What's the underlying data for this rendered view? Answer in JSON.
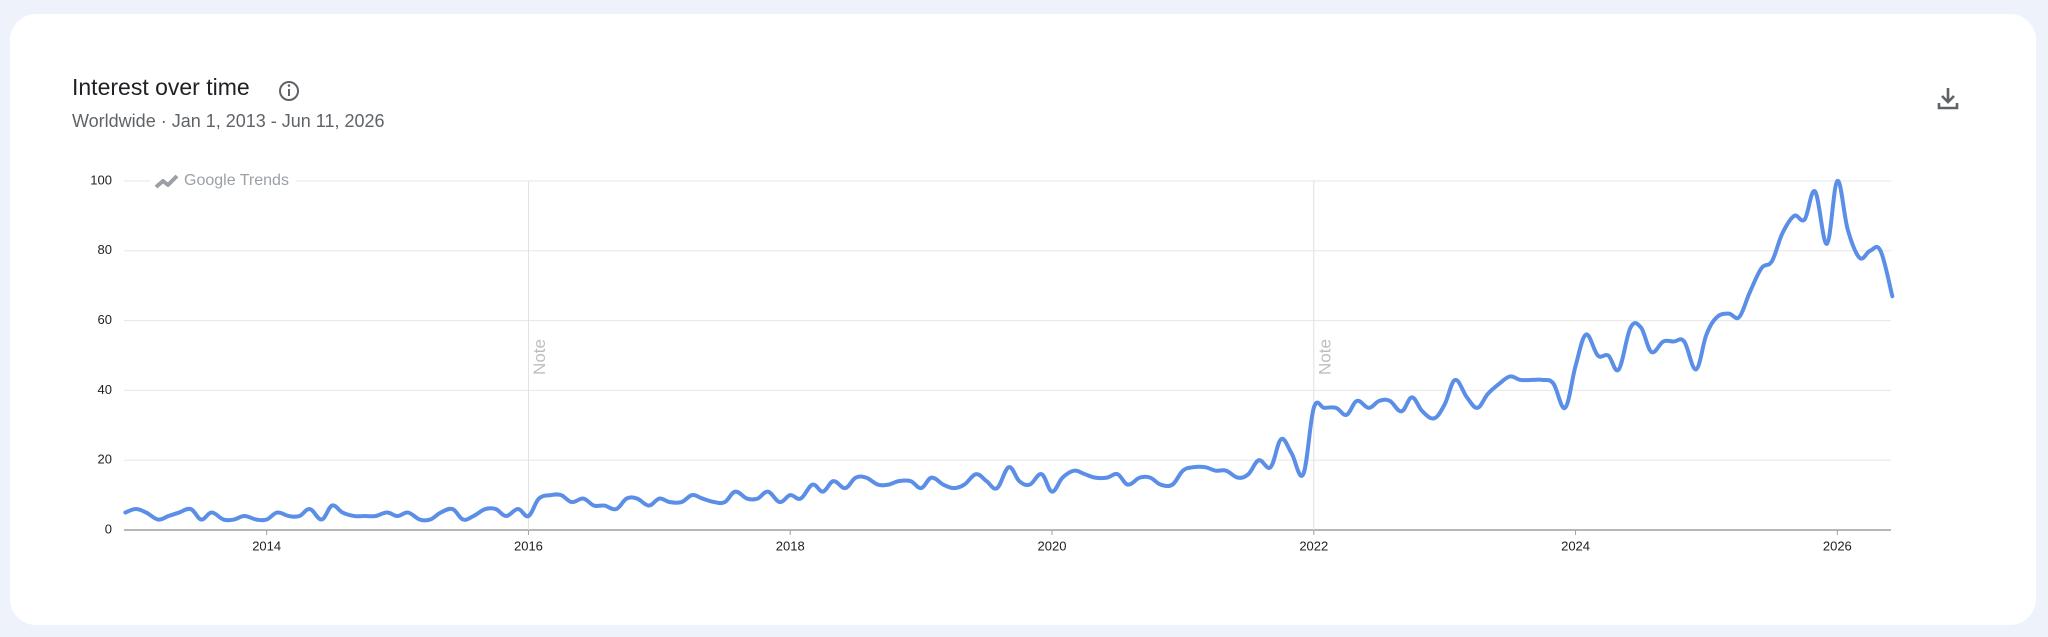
{
  "chart_data": {
    "type": "line",
    "title": "Interest over time",
    "subtitle": "Worldwide · Jan 1, 2013 - Jun 11, 2026",
    "watermark": "Google Trends",
    "x": [
      2012.92,
      2013,
      2013.08,
      2013.17,
      2013.25,
      2013.33,
      2013.42,
      2013.5,
      2013.58,
      2013.67,
      2013.75,
      2013.83,
      2013.92,
      2014,
      2014.08,
      2014.17,
      2014.25,
      2014.33,
      2014.42,
      2014.5,
      2014.58,
      2014.67,
      2014.75,
      2014.83,
      2014.92,
      2015,
      2015.08,
      2015.17,
      2015.25,
      2015.33,
      2015.42,
      2015.5,
      2015.58,
      2015.67,
      2015.75,
      2015.83,
      2015.92,
      2016,
      2016.08,
      2016.17,
      2016.25,
      2016.33,
      2016.42,
      2016.5,
      2016.58,
      2016.67,
      2016.75,
      2016.83,
      2016.92,
      2017,
      2017.08,
      2017.17,
      2017.25,
      2017.33,
      2017.42,
      2017.5,
      2017.58,
      2017.67,
      2017.75,
      2017.83,
      2017.92,
      2018,
      2018.08,
      2018.17,
      2018.25,
      2018.33,
      2018.42,
      2018.5,
      2018.58,
      2018.67,
      2018.75,
      2018.83,
      2018.92,
      2019,
      2019.08,
      2019.17,
      2019.25,
      2019.33,
      2019.42,
      2019.5,
      2019.58,
      2019.67,
      2019.75,
      2019.83,
      2019.92,
      2020,
      2020.08,
      2020.17,
      2020.25,
      2020.33,
      2020.42,
      2020.5,
      2020.58,
      2020.67,
      2020.75,
      2020.83,
      2020.92,
      2021,
      2021.08,
      2021.17,
      2021.25,
      2021.33,
      2021.42,
      2021.5,
      2021.58,
      2021.67,
      2021.75,
      2021.83,
      2021.92,
      2022,
      2022.08,
      2022.17,
      2022.25,
      2022.33,
      2022.42,
      2022.5,
      2022.58,
      2022.67,
      2022.75,
      2022.83,
      2022.92,
      2023,
      2023.08,
      2023.17,
      2023.25,
      2023.33,
      2023.42,
      2023.5,
      2023.58,
      2023.67,
      2023.75,
      2023.83,
      2023.92,
      2024,
      2024.08,
      2024.17,
      2024.25,
      2024.33,
      2024.42,
      2024.5,
      2024.58,
      2024.67,
      2024.75,
      2024.83,
      2024.92,
      2025,
      2025.08,
      2025.17,
      2025.25,
      2025.33,
      2025.42,
      2025.5,
      2025.58,
      2025.67,
      2025.75,
      2025.83,
      2025.92,
      2026,
      2026.08,
      2026.17,
      2026.25,
      2026.33,
      2026.42
    ],
    "series": [
      {
        "name": "Interest",
        "color": "#5b8ee6",
        "values": [
          5,
          6,
          5,
          3,
          4,
          5,
          6,
          3,
          5,
          3,
          3,
          4,
          3,
          3,
          5,
          4,
          4,
          6,
          3,
          7,
          5,
          4,
          4,
          4,
          5,
          4,
          5,
          3,
          3,
          5,
          6,
          3,
          4,
          6,
          6,
          4,
          6,
          4,
          9,
          10,
          10,
          8,
          9,
          7,
          7,
          6,
          9,
          9,
          7,
          9,
          8,
          8,
          10,
          9,
          8,
          8,
          11,
          9,
          9,
          11,
          8,
          10,
          9,
          13,
          11,
          14,
          12,
          15,
          15,
          13,
          13,
          14,
          14,
          12,
          15,
          13,
          12,
          13,
          16,
          14,
          12,
          18,
          14,
          13,
          16,
          11,
          15,
          17,
          16,
          15,
          15,
          16,
          13,
          15,
          15,
          13,
          13,
          17,
          18,
          18,
          17,
          17,
          15,
          16,
          20,
          18,
          26,
          22,
          16,
          35,
          35,
          35,
          33,
          37,
          35,
          37,
          37,
          34,
          38,
          34,
          32,
          36,
          43,
          38,
          35,
          39,
          42,
          44,
          43,
          43,
          43,
          42,
          35,
          47,
          56,
          50,
          50,
          46,
          58,
          58,
          51,
          54,
          54,
          54,
          46,
          56,
          61,
          62,
          61,
          68,
          75,
          77,
          85,
          90,
          89,
          97,
          82,
          100,
          86,
          78,
          80,
          80,
          67
        ]
      }
    ],
    "xlim": [
      2012.91,
      2026.41
    ],
    "xticks": [
      2014,
      2016,
      2018,
      2020,
      2022,
      2024,
      2026
    ],
    "ylim": [
      0,
      100
    ],
    "yticks": [
      0,
      20,
      40,
      60,
      80,
      100
    ],
    "grid": true,
    "annotations": [
      {
        "x": 2016,
        "label": "Note"
      },
      {
        "x": 2022,
        "label": "Note"
      }
    ]
  }
}
